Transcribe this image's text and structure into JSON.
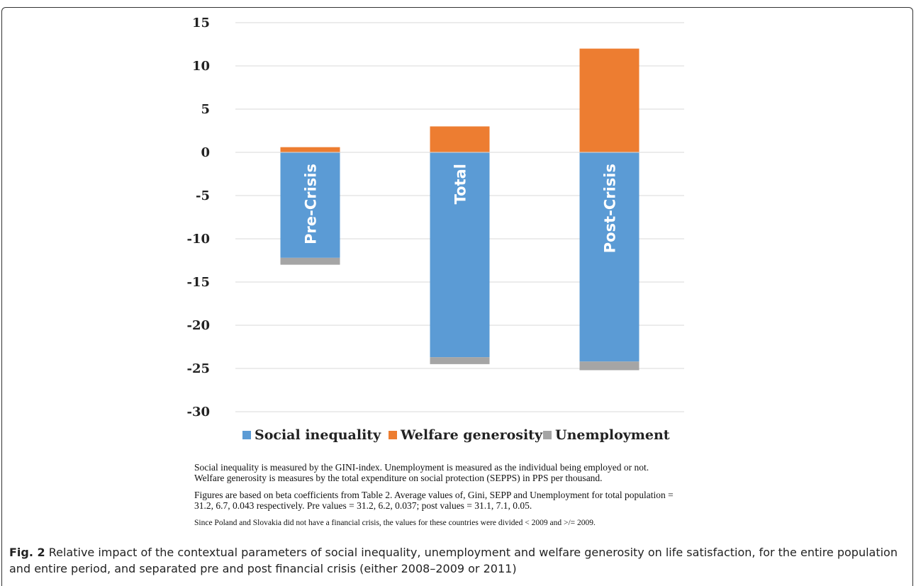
{
  "chart_data": {
    "type": "bar",
    "stacked": true,
    "categories": [
      "Pre-Crisis",
      "Total",
      "Post-Crisis"
    ],
    "series": [
      {
        "name": "Social inequality",
        "color": "#5B9BD5",
        "values": [
          -12.2,
          -23.7,
          -24.2
        ]
      },
      {
        "name": "Welfare generosity",
        "color": "#ED7D31",
        "values": [
          0.6,
          3.0,
          12.0
        ]
      },
      {
        "name": "Unemployment",
        "color": "#A5A5A5",
        "values": [
          -0.8,
          -0.8,
          -1.0
        ]
      }
    ],
    "yticks": [
      "15",
      "10",
      "5",
      "0",
      "-5",
      "-10",
      "-15",
      "-20",
      "-25",
      "-30"
    ],
    "ylim": [
      -30,
      15
    ],
    "grid": true,
    "legend_position": "bottom"
  },
  "notes": {
    "line1": "Social inequality is measured by the GINI-index. Unemployment is measured as the individual being employed or not.",
    "line2": "Welfare generosity is measures by the total expenditure on social protection (SEPPS) in PPS per thousand.",
    "line3": "Figures are based on beta coefficients from Table 2. Average values of, Gini, SEPP and Unemployment for total population =",
    "line4": "31.2, 6.7, 0.043 respectively. Pre values = 31.2, 6.2, 0.037; post values = 31.1, 7.1, 0.05.",
    "line5": "Since Poland and Slovakia did not have a financial crisis, the values for these countries were divided < 2009 and >/= 2009."
  },
  "caption": {
    "label": "Fig. 2",
    "text": " Relative impact of the contextual parameters of social inequality, unemployment and welfare generosity on life satisfaction, for the entire population and entire period, and separated pre and post financial crisis (either 2008–2009 or 2011)"
  }
}
